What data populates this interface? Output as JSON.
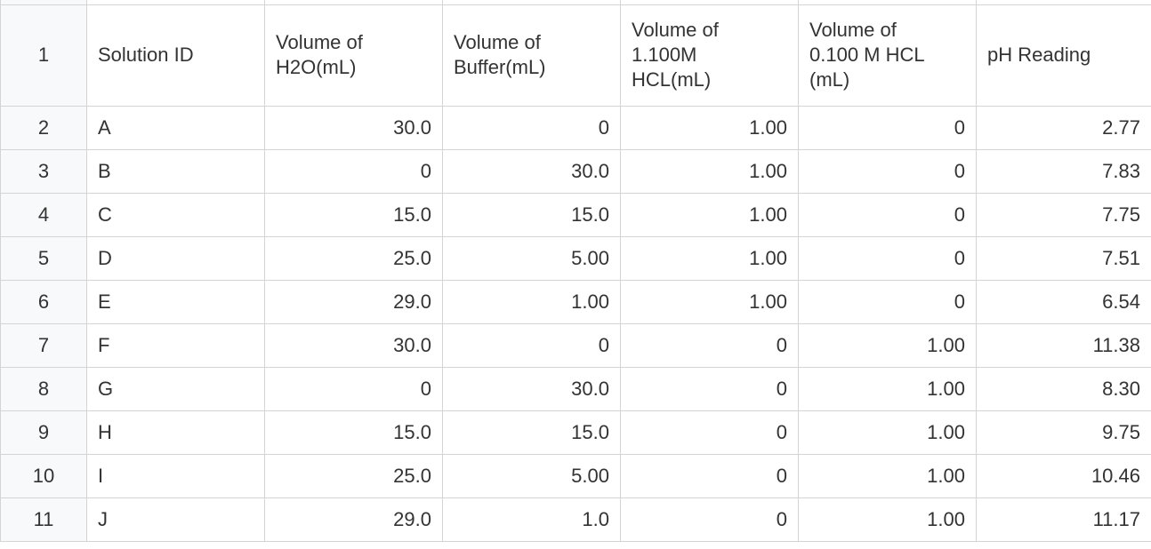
{
  "table": {
    "row_numbers": [
      "1",
      "2",
      "3",
      "4",
      "5",
      "6",
      "7",
      "8",
      "9",
      "10",
      "11"
    ],
    "header": [
      "Solution ID",
      "Volume of H2O(mL)",
      "Volume of Buffer(mL)",
      "Volume of 1.100M HCL(mL)",
      "Volume of 0.100 M HCL (mL)",
      "pH Reading"
    ],
    "rows": [
      [
        "A",
        "30.0",
        "0",
        "1.00",
        "0",
        "2.77"
      ],
      [
        "B",
        "0",
        "30.0",
        "1.00",
        "0",
        "7.83"
      ],
      [
        "C",
        "15.0",
        "15.0",
        "1.00",
        "0",
        "7.75"
      ],
      [
        "D",
        "25.0",
        "5.00",
        "1.00",
        "0",
        "7.51"
      ],
      [
        "E",
        "29.0",
        "1.00",
        "1.00",
        "0",
        "6.54"
      ],
      [
        "F",
        "30.0",
        "0",
        "0",
        "1.00",
        "11.38"
      ],
      [
        "G",
        "0",
        "30.0",
        "0",
        "1.00",
        "8.30"
      ],
      [
        "H",
        "15.0",
        "15.0",
        "0",
        "1.00",
        "9.75"
      ],
      [
        "I",
        "25.0",
        "5.00",
        "0",
        "1.00",
        "10.46"
      ],
      [
        "J",
        "29.0",
        "1.0",
        "0",
        "1.00",
        "11.17"
      ]
    ]
  }
}
